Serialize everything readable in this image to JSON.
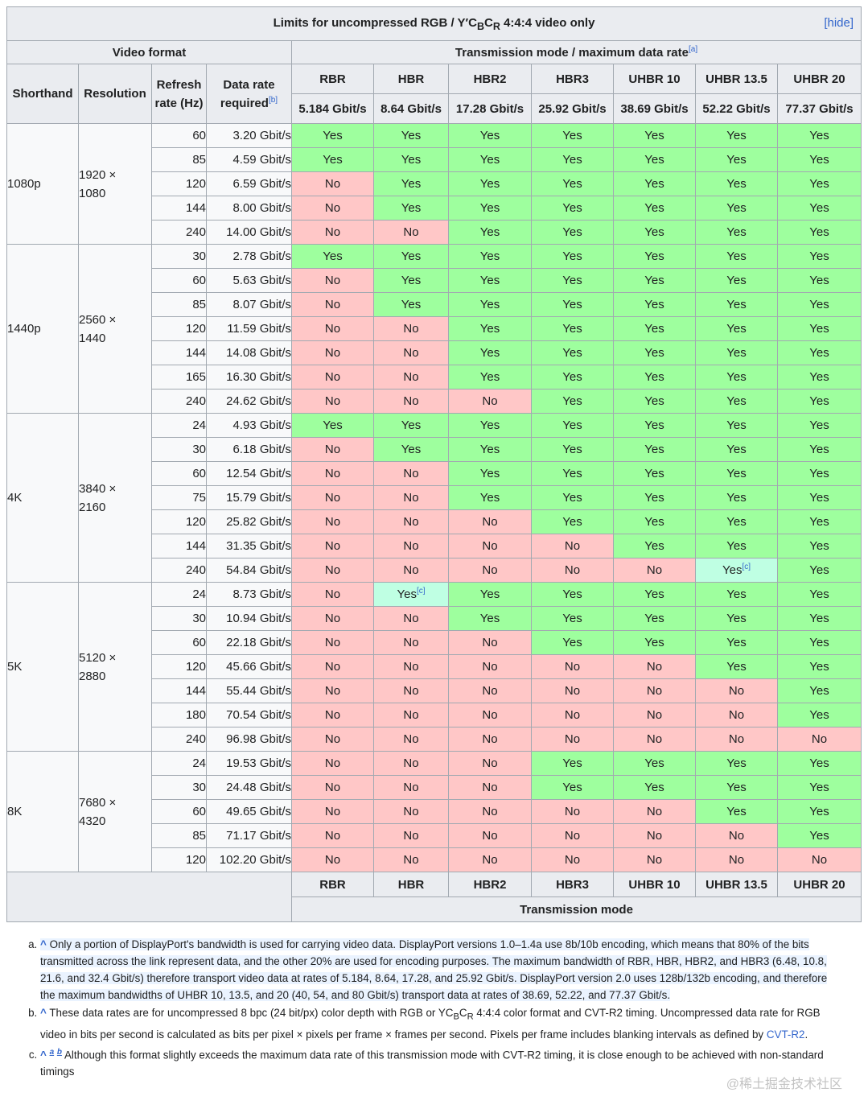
{
  "table": {
    "caption_pre": "Limits for uncompressed RGB / Y′C",
    "caption_sub1": "B",
    "caption_mid": "C",
    "caption_sub2": "R",
    "caption_post": " 4:4:4 video only",
    "hide_label": "hide",
    "header": {
      "video_format": "Video format",
      "transmission": "Transmission mode / maximum data rate",
      "transmission_note": "[a]",
      "shorthand": "Shorthand",
      "resolution": "Resolution",
      "refresh_rate": "Refresh rate (Hz)",
      "data_rate": "Data rate required",
      "data_rate_note": "[b]"
    },
    "modes": [
      {
        "name": "RBR",
        "rate": "5.184 Gbit/s"
      },
      {
        "name": "HBR",
        "rate": "8.64 Gbit/s"
      },
      {
        "name": "HBR2",
        "rate": "17.28 Gbit/s"
      },
      {
        "name": "HBR3",
        "rate": "25.92 Gbit/s"
      },
      {
        "name": "UHBR 10",
        "rate": "38.69 Gbit/s"
      },
      {
        "name": "UHBR 13.5",
        "rate": "52.22 Gbit/s"
      },
      {
        "name": "UHBR 20",
        "rate": "77.37 Gbit/s"
      }
    ],
    "footer_label": "Transmission mode",
    "groups": [
      {
        "shorthand": "1080p",
        "res_w": "1920 ×",
        "res_h": "1080",
        "rows": [
          {
            "hz": "60",
            "rate": "3.20 Gbit/s",
            "cells": [
              "Yes",
              "Yes",
              "Yes",
              "Yes",
              "Yes",
              "Yes",
              "Yes"
            ]
          },
          {
            "hz": "85",
            "rate": "4.59 Gbit/s",
            "cells": [
              "Yes",
              "Yes",
              "Yes",
              "Yes",
              "Yes",
              "Yes",
              "Yes"
            ]
          },
          {
            "hz": "120",
            "rate": "6.59 Gbit/s",
            "cells": [
              "No",
              "Yes",
              "Yes",
              "Yes",
              "Yes",
              "Yes",
              "Yes"
            ]
          },
          {
            "hz": "144",
            "rate": "8.00 Gbit/s",
            "cells": [
              "No",
              "Yes",
              "Yes",
              "Yes",
              "Yes",
              "Yes",
              "Yes"
            ]
          },
          {
            "hz": "240",
            "rate": "14.00 Gbit/s",
            "cells": [
              "No",
              "No",
              "Yes",
              "Yes",
              "Yes",
              "Yes",
              "Yes"
            ]
          }
        ]
      },
      {
        "shorthand": "1440p",
        "res_w": "2560 ×",
        "res_h": "1440",
        "rows": [
          {
            "hz": "30",
            "rate": "2.78 Gbit/s",
            "cells": [
              "Yes",
              "Yes",
              "Yes",
              "Yes",
              "Yes",
              "Yes",
              "Yes"
            ]
          },
          {
            "hz": "60",
            "rate": "5.63 Gbit/s",
            "cells": [
              "No",
              "Yes",
              "Yes",
              "Yes",
              "Yes",
              "Yes",
              "Yes"
            ]
          },
          {
            "hz": "85",
            "rate": "8.07 Gbit/s",
            "cells": [
              "No",
              "Yes",
              "Yes",
              "Yes",
              "Yes",
              "Yes",
              "Yes"
            ]
          },
          {
            "hz": "120",
            "rate": "11.59 Gbit/s",
            "cells": [
              "No",
              "No",
              "Yes",
              "Yes",
              "Yes",
              "Yes",
              "Yes"
            ]
          },
          {
            "hz": "144",
            "rate": "14.08 Gbit/s",
            "cells": [
              "No",
              "No",
              "Yes",
              "Yes",
              "Yes",
              "Yes",
              "Yes"
            ]
          },
          {
            "hz": "165",
            "rate": "16.30 Gbit/s",
            "cells": [
              "No",
              "No",
              "Yes",
              "Yes",
              "Yes",
              "Yes",
              "Yes"
            ]
          },
          {
            "hz": "240",
            "rate": "24.62 Gbit/s",
            "cells": [
              "No",
              "No",
              "No",
              "Yes",
              "Yes",
              "Yes",
              "Yes"
            ]
          }
        ]
      },
      {
        "shorthand": "4K",
        "res_w": "3840 ×",
        "res_h": "2160",
        "rows": [
          {
            "hz": "24",
            "rate": "4.93 Gbit/s",
            "cells": [
              "Yes",
              "Yes",
              "Yes",
              "Yes",
              "Yes",
              "Yes",
              "Yes"
            ]
          },
          {
            "hz": "30",
            "rate": "6.18 Gbit/s",
            "cells": [
              "No",
              "Yes",
              "Yes",
              "Yes",
              "Yes",
              "Yes",
              "Yes"
            ]
          },
          {
            "hz": "60",
            "rate": "12.54 Gbit/s",
            "cells": [
              "No",
              "No",
              "Yes",
              "Yes",
              "Yes",
              "Yes",
              "Yes"
            ]
          },
          {
            "hz": "75",
            "rate": "15.79 Gbit/s",
            "cells": [
              "No",
              "No",
              "Yes",
              "Yes",
              "Yes",
              "Yes",
              "Yes"
            ]
          },
          {
            "hz": "120",
            "rate": "25.82 Gbit/s",
            "cells": [
              "No",
              "No",
              "No",
              "Yes",
              "Yes",
              "Yes",
              "Yes"
            ]
          },
          {
            "hz": "144",
            "rate": "31.35 Gbit/s",
            "cells": [
              "No",
              "No",
              "No",
              "No",
              "Yes",
              "Yes",
              "Yes"
            ]
          },
          {
            "hz": "240",
            "rate": "54.84 Gbit/s",
            "cells": [
              "No",
              "No",
              "No",
              "No",
              "No",
              "Yes[c]",
              "Yes"
            ]
          }
        ]
      },
      {
        "shorthand": "5K",
        "res_w": "5120 ×",
        "res_h": "2880",
        "rows": [
          {
            "hz": "24",
            "rate": "8.73 Gbit/s",
            "cells": [
              "No",
              "Yes[c]",
              "Yes",
              "Yes",
              "Yes",
              "Yes",
              "Yes"
            ]
          },
          {
            "hz": "30",
            "rate": "10.94 Gbit/s",
            "cells": [
              "No",
              "No",
              "Yes",
              "Yes",
              "Yes",
              "Yes",
              "Yes"
            ]
          },
          {
            "hz": "60",
            "rate": "22.18 Gbit/s",
            "cells": [
              "No",
              "No",
              "No",
              "Yes",
              "Yes",
              "Yes",
              "Yes"
            ]
          },
          {
            "hz": "120",
            "rate": "45.66 Gbit/s",
            "cells": [
              "No",
              "No",
              "No",
              "No",
              "No",
              "Yes",
              "Yes"
            ]
          },
          {
            "hz": "144",
            "rate": "55.44 Gbit/s",
            "cells": [
              "No",
              "No",
              "No",
              "No",
              "No",
              "No",
              "Yes"
            ]
          },
          {
            "hz": "180",
            "rate": "70.54 Gbit/s",
            "cells": [
              "No",
              "No",
              "No",
              "No",
              "No",
              "No",
              "Yes"
            ]
          },
          {
            "hz": "240",
            "rate": "96.98 Gbit/s",
            "cells": [
              "No",
              "No",
              "No",
              "No",
              "No",
              "No",
              "No"
            ]
          }
        ]
      },
      {
        "shorthand": "8K",
        "res_w": "7680 ×",
        "res_h": "4320",
        "rows": [
          {
            "hz": "24",
            "rate": "19.53 Gbit/s",
            "cells": [
              "No",
              "No",
              "No",
              "Yes",
              "Yes",
              "Yes",
              "Yes"
            ]
          },
          {
            "hz": "30",
            "rate": "24.48 Gbit/s",
            "cells": [
              "No",
              "No",
              "No",
              "Yes",
              "Yes",
              "Yes",
              "Yes"
            ]
          },
          {
            "hz": "60",
            "rate": "49.65 Gbit/s",
            "cells": [
              "No",
              "No",
              "No",
              "No",
              "No",
              "Yes",
              "Yes"
            ]
          },
          {
            "hz": "85",
            "rate": "71.17 Gbit/s",
            "cells": [
              "No",
              "No",
              "No",
              "No",
              "No",
              "No",
              "Yes"
            ]
          },
          {
            "hz": "120",
            "rate": "102.20 Gbit/s",
            "cells": [
              "No",
              "No",
              "No",
              "No",
              "No",
              "No",
              "No"
            ]
          }
        ]
      }
    ]
  },
  "notes": {
    "caret": "^",
    "a_text": "Only a portion of DisplayPort's bandwidth is used for carrying video data. DisplayPort versions 1.0–1.4a use 8b/10b encoding, which means that 80% of the bits transmitted across the link represent data, and the other 20% are used for encoding purposes. The maximum bandwidth of RBR, HBR, HBR2, and HBR3 (6.48, 10.8, 21.6, and 32.4 Gbit/s) therefore transport video data at rates of 5.184, 8.64, 17.28, and 25.92 Gbit/s. DisplayPort version 2.0 uses 128b/132b encoding, and therefore the maximum bandwidths of UHBR 10, 13.5, and 20 (40, 54, and 80 Gbit/s) transport data at rates of 38.69, 52.22, and 77.37 Gbit/s.",
    "b_text_pre": "These data rates are for uncompressed 8 bpc (24 bit/px) color depth with RGB or YC",
    "b_sub1": "B",
    "b_mid": "C",
    "b_sub2": "R",
    "b_text_post": " 4:4:4 color format and CVT-R2 timing. Uncompressed data rate for RGB video in bits per second is calculated as bits per pixel × pixels per frame × frames per second. Pixels per frame includes blanking intervals as defined by ",
    "b_link": "CVT-R2",
    "b_end": ".",
    "c_letter_a": "a",
    "c_letter_b": "b",
    "c_text": "Although this format slightly exceeds the maximum data rate of this transmission mode with CVT-R2 timing, it is close enough to be achieved with non-standard timings"
  },
  "watermark": "@稀土掘金技术社区"
}
